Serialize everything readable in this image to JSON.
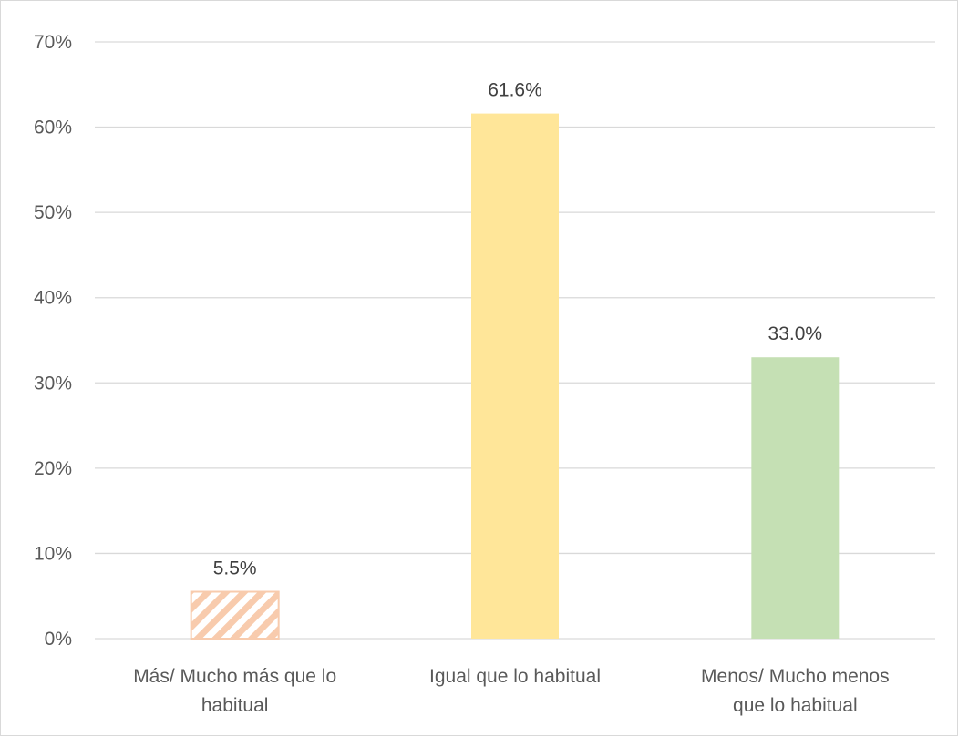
{
  "chart_data": {
    "type": "bar",
    "title": "",
    "xlabel": "",
    "ylabel": "",
    "ylim": [
      0,
      70
    ],
    "y_ticks": [
      0,
      10,
      20,
      30,
      40,
      50,
      60,
      70
    ],
    "y_tick_labels": [
      "0%",
      "10%",
      "20%",
      "30%",
      "40%",
      "50%",
      "60%",
      "70%"
    ],
    "grid": true,
    "categories": [
      [
        "Más/ Mucho más que lo",
        "habitual"
      ],
      [
        "Igual que lo habitual"
      ],
      [
        "Menos/ Mucho menos",
        "que lo habitual"
      ]
    ],
    "values": [
      5.5,
      61.6,
      33.0
    ],
    "data_labels": [
      "5.5%",
      "61.6%",
      "33.0%"
    ],
    "bar_colors": [
      "#f8cbad",
      "#ffe699",
      "#c5e0b4"
    ],
    "bar_patterns": [
      "diagonal-stripes",
      "solid",
      "solid"
    ]
  }
}
